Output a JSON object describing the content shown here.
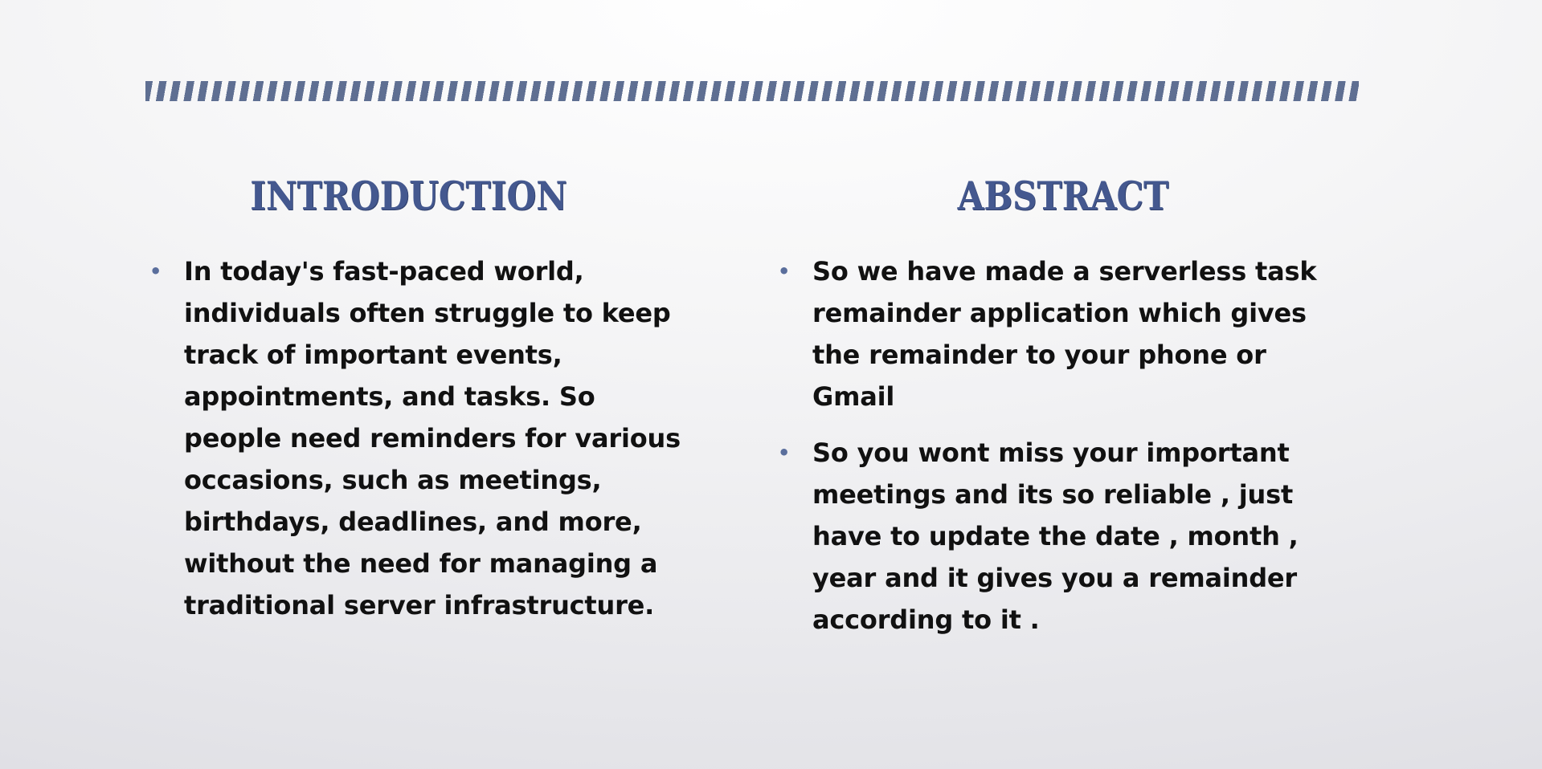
{
  "colors": {
    "heading": "#44588f",
    "stripe": "#5f6f92",
    "bullet": "#5a6e9c",
    "text": "#111111"
  },
  "decoration": {
    "top_bar_icon": "diagonal-stripe-bar"
  },
  "introduction": {
    "title": "INTRODUCTION",
    "bullets": [
      "In today's fast-paced world, individuals often struggle to keep track of important events, appointments, and tasks. So people need  reminders for various occasions, such as meetings, birthdays, deadlines, and more, without the need for managing a traditional server infrastructure."
    ]
  },
  "abstract": {
    "title": "ABSTRACT",
    "bullets": [
      "So we have made a serverless task remainder application which gives the remainder to your phone or Gmail",
      "So you wont miss your important meetings and its so reliable , just have to update the date , month , year and it gives you a remainder according to it ."
    ]
  },
  "bullet_glyph": "•"
}
